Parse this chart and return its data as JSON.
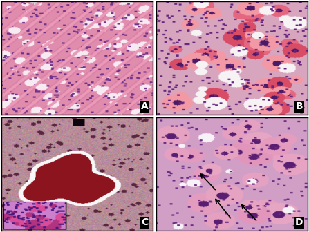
{
  "figure_width": 4.47,
  "figure_height": 3.36,
  "dpi": 100,
  "panels": [
    "A",
    "B",
    "C",
    "D"
  ],
  "label_fontsize": 10,
  "label_fontweight": "bold",
  "label_color": "white",
  "border_color": "black",
  "border_linewidth": 1.0,
  "arrow_color": "black",
  "background_color": "white"
}
